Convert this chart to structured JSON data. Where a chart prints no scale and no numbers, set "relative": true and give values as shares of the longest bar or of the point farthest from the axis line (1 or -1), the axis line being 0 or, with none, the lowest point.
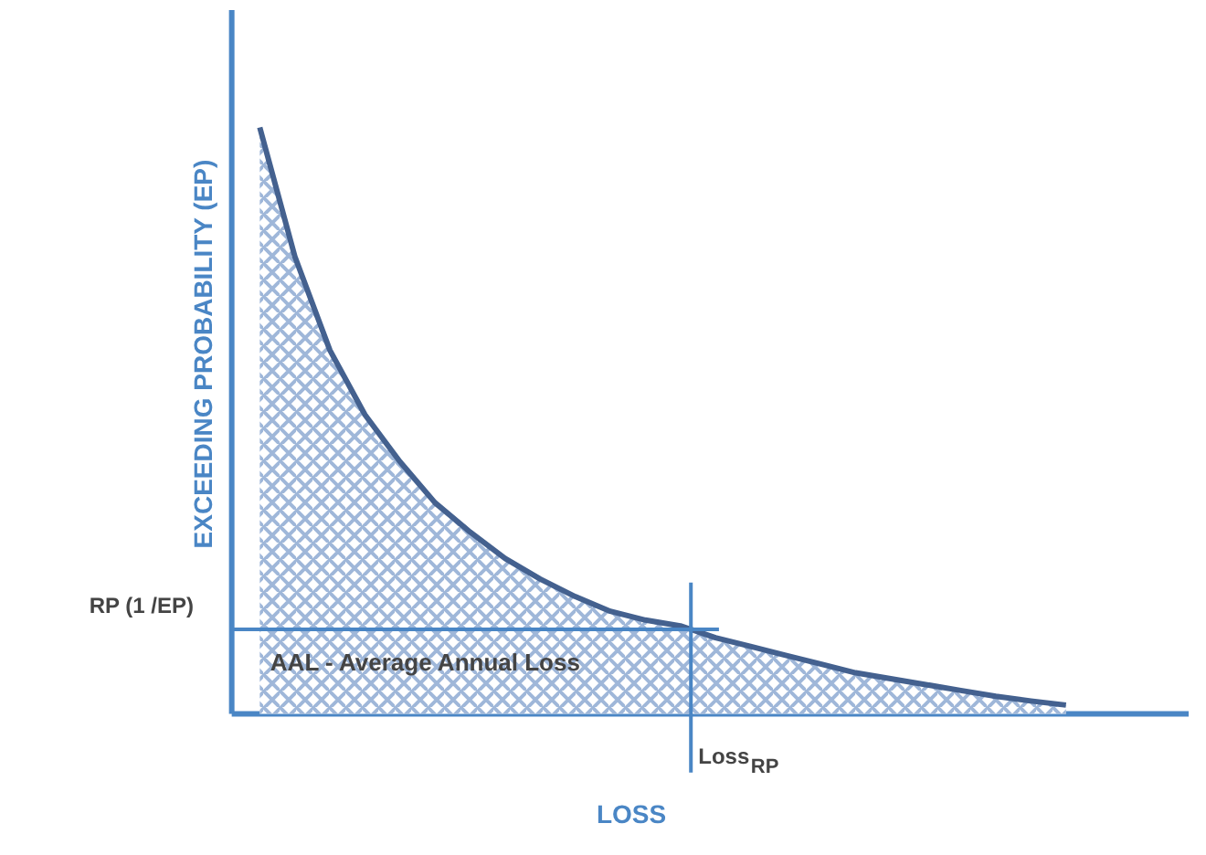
{
  "chart_data": {
    "type": "area",
    "relative": true,
    "xlabel": "LOSS",
    "ylabel": "EXCEEDING PROBABILITY  (EP)",
    "categories": [
      null,
      null,
      null,
      null,
      null,
      null,
      null,
      null,
      null,
      null,
      null,
      null,
      null,
      null,
      null,
      null,
      null,
      null,
      null,
      null,
      null,
      null,
      null,
      null
    ],
    "series": [
      {
        "color": "#44618f",
        "values": [
          1.0,
          0.78,
          0.62,
          0.51,
          0.43,
          0.36,
          0.31,
          0.265,
          0.23,
          0.2,
          0.175,
          0.16,
          0.15,
          0.13,
          0.115,
          0.1,
          0.085,
          0.07,
          0.06,
          0.05,
          0.04,
          0.03,
          0.022,
          0.015
        ]
      }
    ],
    "ref_lines": [
      {
        "axis": "y",
        "value": 0.144,
        "label": "RP (1 /EP)",
        "color": "#4a86c5"
      }
    ],
    "annotations": [
      "AAL - Average Annual Loss",
      "Loss$_{RP}$"
    ]
  }
}
